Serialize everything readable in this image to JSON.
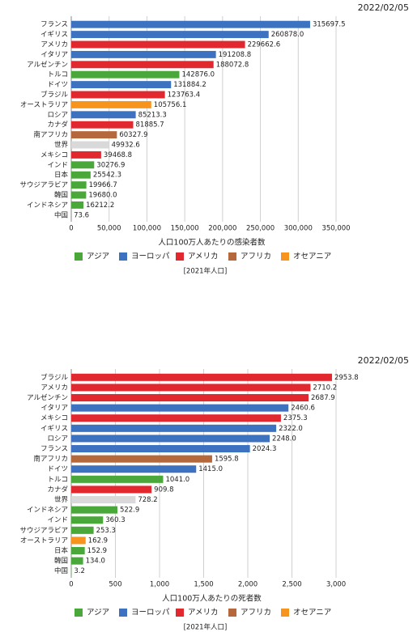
{
  "chart_data": [
    {
      "type": "bar",
      "orientation": "horizontal",
      "date": "2022/02/05",
      "categories": [
        "フランス",
        "イギリス",
        "アメリカ",
        "イタリア",
        "アルゼンチン",
        "トルコ",
        "ドイツ",
        "ブラジル",
        "オーストラリア",
        "ロシア",
        "カナダ",
        "南アフリカ",
        "世界",
        "メキシコ",
        "インド",
        "日本",
        "サウジアラビア",
        "韓国",
        "インドネシア",
        "中国"
      ],
      "values": [
        315697.5,
        260878.0,
        229662.6,
        191208.8,
        188072.8,
        142876.0,
        131884.2,
        123763.4,
        105756.1,
        85213.3,
        81885.7,
        60327.9,
        49932.6,
        39468.8,
        30276.9,
        25542.3,
        19966.7,
        19680.0,
        16212.2,
        73.6
      ],
      "value_labels": [
        "315697.5",
        "260878.0",
        "229662.6",
        "191208.8",
        "188072.8",
        "142876.0",
        "131884.2",
        "123763.4",
        "105756.1",
        "85213.3",
        "81885.7",
        "60327.9",
        "49932.6",
        "39468.8",
        "30276.9",
        "25542.3",
        "19966.7",
        "19680.0",
        "16212.2",
        "73.6"
      ],
      "colors": [
        "#3d72c0",
        "#3d72c0",
        "#e0282e",
        "#3d72c0",
        "#e0282e",
        "#4aa83a",
        "#3d72c0",
        "#e0282e",
        "#f7941d",
        "#3d72c0",
        "#e0282e",
        "#b5683b",
        "#d9d9d9",
        "#e0282e",
        "#4aa83a",
        "#4aa83a",
        "#4aa83a",
        "#4aa83a",
        "#4aa83a",
        "#4aa83a"
      ],
      "xlim": [
        0,
        350000
      ],
      "xticks": [
        0,
        {
          "value": 50000,
          "label": "50,000"
        },
        {
          "value": 100000,
          "label": "100,000"
        },
        {
          "value": 150000,
          "label": "150,000"
        },
        {
          "value": 200000,
          "label": "200,000"
        },
        {
          "value": 250000,
          "label": "250,000"
        },
        {
          "value": 300000,
          "label": "300,000"
        },
        {
          "value": 350000,
          "label": "350,000"
        }
      ],
      "grid": true,
      "xlabel": "人口100万人あたりの感染者数",
      "legend": [
        {
          "name": "アジア",
          "color": "#4aa83a"
        },
        {
          "name": "ヨーロッパ",
          "color": "#3d72c0"
        },
        {
          "name": "アメリカ",
          "color": "#e0282e"
        },
        {
          "name": "アフリカ",
          "color": "#b5683b"
        },
        {
          "name": "オセアニア",
          "color": "#f7941d"
        }
      ],
      "note": "[2021年人口]"
    },
    {
      "type": "bar",
      "orientation": "horizontal",
      "date": "2022/02/05",
      "categories": [
        "ブラジル",
        "アメリカ",
        "アルゼンチン",
        "イタリア",
        "メキシコ",
        "イギリス",
        "ロシア",
        "フランス",
        "南アフリカ",
        "ドイツ",
        "トルコ",
        "カナダ",
        "世界",
        "インドネシア",
        "インド",
        "サウジアラビア",
        "オーストラリア",
        "日本",
        "韓国",
        "中国"
      ],
      "values": [
        2953.8,
        2710.2,
        2687.9,
        2460.6,
        2375.3,
        2322.0,
        2248.0,
        2024.3,
        1595.8,
        1415.0,
        1041.0,
        909.8,
        728.2,
        522.9,
        360.3,
        253.3,
        162.9,
        152.9,
        134.0,
        3.2
      ],
      "value_labels": [
        "2953.8",
        "2710.2",
        "2687.9",
        "2460.6",
        "2375.3",
        "2322.0",
        "2248.0",
        "2024.3",
        "1595.8",
        "1415.0",
        "1041.0",
        "909.8",
        "728.2",
        "522.9",
        "360.3",
        "253.3",
        "162.9",
        "152.9",
        "134.0",
        "3.2"
      ],
      "colors": [
        "#e0282e",
        "#e0282e",
        "#e0282e",
        "#3d72c0",
        "#e0282e",
        "#3d72c0",
        "#3d72c0",
        "#3d72c0",
        "#b5683b",
        "#3d72c0",
        "#4aa83a",
        "#e0282e",
        "#d9d9d9",
        "#4aa83a",
        "#4aa83a",
        "#4aa83a",
        "#f7941d",
        "#4aa83a",
        "#4aa83a",
        "#4aa83a"
      ],
      "xlim": [
        0,
        3000
      ],
      "xticks": [
        0,
        500,
        {
          "value": 1000,
          "label": "1,000"
        },
        {
          "value": 1500,
          "label": "1,500"
        },
        {
          "value": 2000,
          "label": "2,000"
        },
        {
          "value": 2500,
          "label": "2,500"
        },
        {
          "value": 3000,
          "label": "3,000"
        }
      ],
      "grid": true,
      "xlabel": "人口100万人あたりの死者数",
      "legend": [
        {
          "name": "アジア",
          "color": "#4aa83a"
        },
        {
          "name": "ヨーロッパ",
          "color": "#3d72c0"
        },
        {
          "name": "アメリカ",
          "color": "#e0282e"
        },
        {
          "name": "アフリカ",
          "color": "#b5683b"
        },
        {
          "name": "オセアニア",
          "color": "#f7941d"
        }
      ],
      "note": "[2021年人口]"
    }
  ]
}
